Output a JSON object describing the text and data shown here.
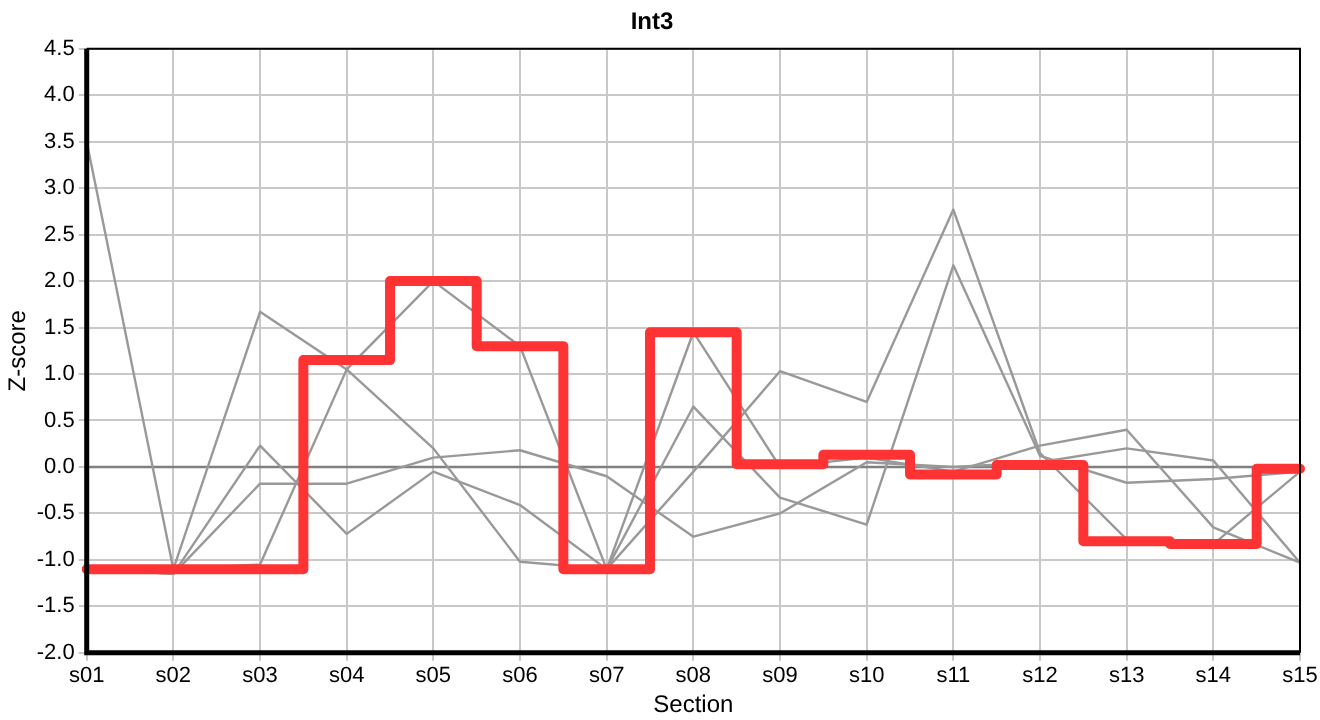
{
  "chart_data": {
    "type": "line",
    "title": "Int3",
    "xlabel": "Section",
    "ylabel": "Z-score",
    "categories": [
      "s01",
      "s02",
      "s03",
      "s04",
      "s05",
      "s06",
      "s07",
      "s08",
      "s09",
      "s10",
      "s11",
      "s12",
      "s13",
      "s14",
      "s15"
    ],
    "series": [
      {
        "type": "step",
        "color": "#ff3333",
        "values": [
          -1.1,
          -1.1,
          -1.1,
          1.15,
          2.0,
          1.3,
          -1.1,
          1.45,
          0.03,
          0.13,
          -0.08,
          0.02,
          -0.8,
          -0.83,
          -0.02
        ]
      },
      {
        "color": "#999999",
        "values": [
          3.5,
          -1.1,
          1.67,
          1.05,
          0.2,
          -1.02,
          -1.1,
          0.65,
          -0.33,
          -0.62,
          2.17,
          0.12,
          -0.17,
          -0.13,
          -0.05
        ]
      },
      {
        "color": "#999999",
        "values": [
          -1.1,
          -1.1,
          -1.05,
          1.05,
          2.0,
          1.3,
          -1.1,
          1.45,
          0.0,
          0.1,
          -0.05,
          0.23,
          0.4,
          -0.65,
          -1.03
        ]
      },
      {
        "color": "#999999",
        "values": [
          -1.1,
          -1.15,
          0.23,
          -0.72,
          -0.05,
          -0.41,
          -1.1,
          -0.05,
          1.03,
          0.7,
          2.77,
          0.15,
          -0.78,
          -0.83,
          -0.05
        ]
      },
      {
        "color": "#999999",
        "values": [
          -1.1,
          -1.15,
          -0.18,
          -0.18,
          0.1,
          0.18,
          -0.1,
          -0.75,
          -0.5,
          0.05,
          0.0,
          0.05,
          0.2,
          0.07,
          -1.03
        ]
      }
    ],
    "ylim": [
      -2,
      4.5
    ],
    "yticks": [
      {
        "value": -2,
        "label": "-2.0"
      },
      -1.5,
      {
        "value": -1,
        "label": "-1.0"
      },
      -0.5,
      {
        "value": 0,
        "label": "0.0"
      },
      0.5,
      {
        "value": 1,
        "label": "1.0"
      },
      1.5,
      {
        "value": 2,
        "label": "2.0"
      },
      2.5,
      {
        "value": 3,
        "label": "3.0"
      },
      3.5,
      {
        "value": 4,
        "label": "4.0"
      },
      4.5
    ],
    "ref_lines": [
      {
        "axis": "y",
        "value": 0,
        "color": "#808080"
      }
    ],
    "grid": true,
    "legend": false,
    "marker": "none",
    "line_style": "solid"
  }
}
